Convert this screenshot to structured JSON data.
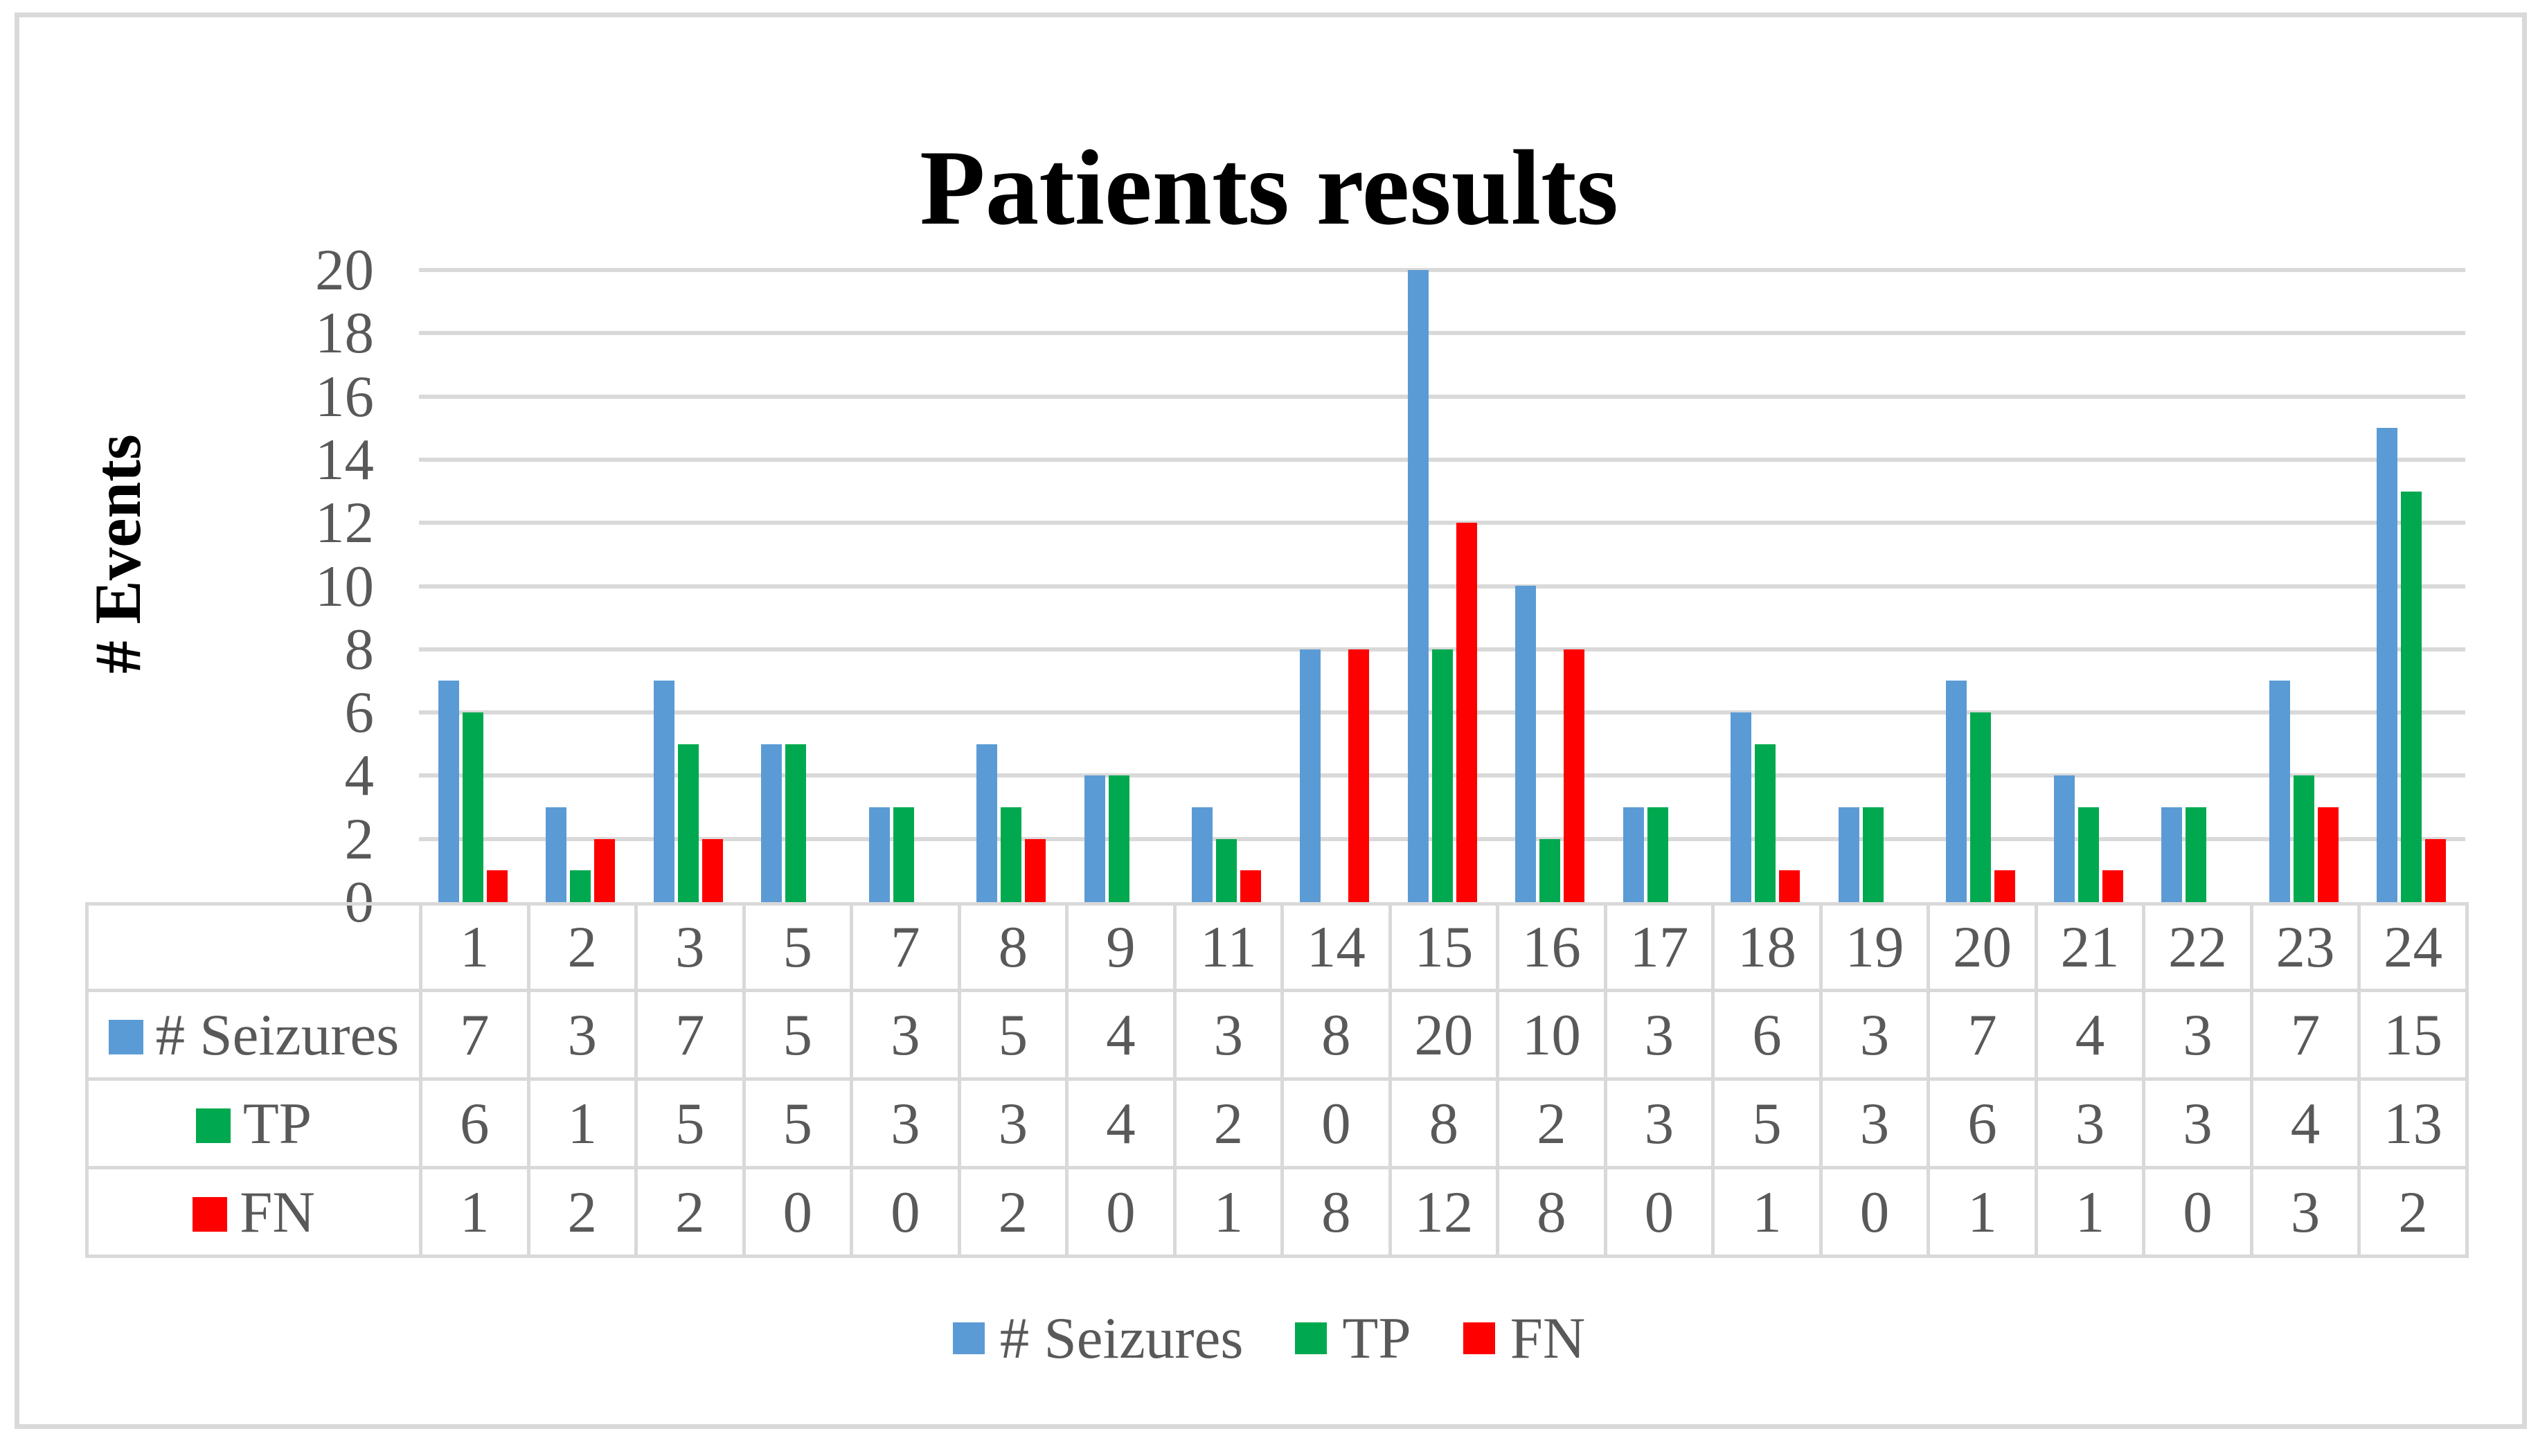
{
  "chart_data": {
    "type": "bar",
    "title": "Patients results",
    "ylabel": "# Events",
    "xlabel": "",
    "categories": [
      "1",
      "2",
      "3",
      "5",
      "7",
      "8",
      "9",
      "11",
      "14",
      "15",
      "16",
      "17",
      "18",
      "19",
      "20",
      "21",
      "22",
      "23",
      "24"
    ],
    "series": [
      {
        "name": "# Seizures",
        "color": "#5B9BD5",
        "values": [
          7,
          3,
          7,
          5,
          3,
          5,
          4,
          3,
          8,
          20,
          10,
          3,
          6,
          3,
          7,
          4,
          3,
          7,
          15
        ]
      },
      {
        "name": "TP",
        "color": "#00A94F",
        "values": [
          6,
          1,
          5,
          5,
          3,
          3,
          4,
          2,
          0,
          8,
          2,
          3,
          5,
          3,
          6,
          3,
          3,
          4,
          13
        ]
      },
      {
        "name": "FN",
        "color": "#FF0000",
        "values": [
          1,
          2,
          2,
          0,
          0,
          2,
          0,
          1,
          8,
          12,
          8,
          0,
          1,
          0,
          1,
          1,
          0,
          3,
          2
        ]
      }
    ],
    "ylim": [
      0,
      20
    ],
    "y_ticks": [
      0,
      2,
      4,
      6,
      8,
      10,
      12,
      14,
      16,
      18,
      20
    ],
    "grid": true,
    "legend_position": "bottom",
    "data_table_shown": true
  },
  "colors": {
    "seizures_blue": "#5B9BD5",
    "tp_green": "#00A94F",
    "fn_red": "#FF0000",
    "gridline": "#D9D9D9",
    "table_border": "#D9D9D9",
    "figure_border": "#D9D9D9",
    "axis_text": "#595959",
    "title_text": "#000000"
  }
}
